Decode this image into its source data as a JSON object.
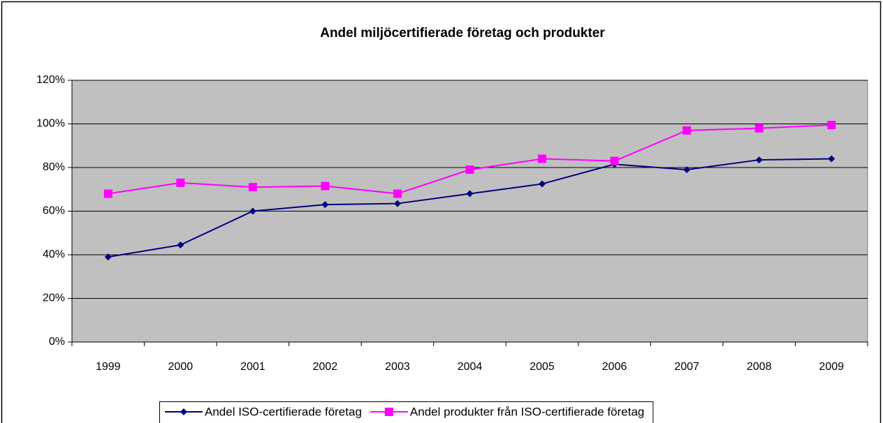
{
  "chart_data": {
    "type": "line",
    "title": "Andel miljöcertifierade företag och produkter",
    "categories": [
      "1999",
      "2000",
      "2001",
      "2002",
      "2003",
      "2004",
      "2005",
      "2006",
      "2007",
      "2008",
      "2009"
    ],
    "series": [
      {
        "name": "Andel ISO-certifierade företag",
        "color": "#000080",
        "marker": "diamond",
        "values": [
          39,
          44.5,
          60,
          63,
          63.5,
          68,
          72.5,
          81.5,
          79,
          83.5,
          84
        ]
      },
      {
        "name": "Andel produkter från ISO-certifierade företag",
        "color": "#ff00ff",
        "marker": "square",
        "values": [
          68,
          73,
          71,
          71.5,
          68,
          79,
          84,
          83,
          97,
          98,
          99.5
        ]
      }
    ],
    "ylim": [
      0,
      120
    ],
    "yticks": [
      {
        "value": 0,
        "label": "0%"
      },
      {
        "value": 20,
        "label": "20%"
      },
      {
        "value": 40,
        "label": "40%"
      },
      {
        "value": 60,
        "label": "60%"
      },
      {
        "value": 80,
        "label": "80%"
      },
      {
        "value": 100,
        "label": "100%"
      },
      {
        "value": 120,
        "label": "120%"
      }
    ],
    "grid": true,
    "plot_background": "#c0c0c0",
    "legend": "bottom"
  }
}
